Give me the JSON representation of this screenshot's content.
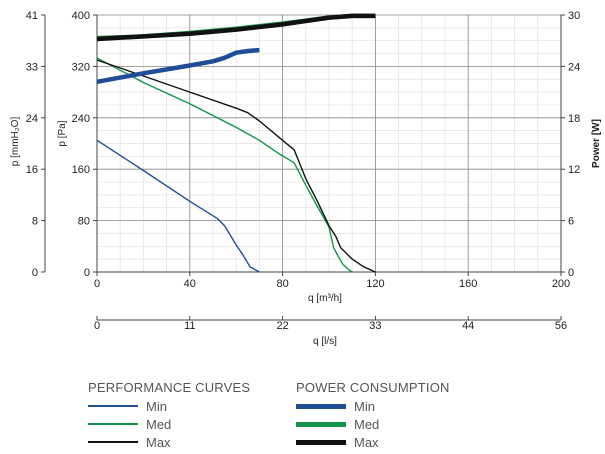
{
  "chart_data": {
    "type": "line",
    "x_primary": {
      "label": "q [m³/h]",
      "ticks": [
        "0",
        "40",
        "80",
        "120",
        "160",
        "200"
      ],
      "range": [
        0,
        200
      ]
    },
    "x_secondary": {
      "label": "q [l/s]",
      "ticks": [
        "0",
        "11",
        "22",
        "33",
        "44",
        "56"
      ]
    },
    "y_left_outer": {
      "label": "p [mmH₂O]",
      "ticks": [
        "0",
        "8",
        "16",
        "24",
        "33",
        "41"
      ]
    },
    "y_left_inner": {
      "label": "p [Pa]",
      "ticks": [
        "0",
        "80",
        "160",
        "240",
        "320",
        "400"
      ],
      "range": [
        0,
        400
      ]
    },
    "y_right": {
      "label": "Power [W]",
      "ticks": [
        "0",
        "6",
        "12",
        "18",
        "24",
        "30"
      ],
      "range": [
        0,
        30
      ]
    },
    "grid": true,
    "series": [
      {
        "name": "Min",
        "group": "performance",
        "axis": "pressure",
        "color": "#1f4e96",
        "x": [
          0,
          20,
          40,
          52,
          55,
          60,
          63,
          66,
          70
        ],
        "y": [
          205,
          158,
          110,
          83,
          72,
          42,
          26,
          8,
          0
        ]
      },
      {
        "name": "Med",
        "group": "performance",
        "axis": "pressure",
        "color": "#13944a",
        "x": [
          0,
          20,
          40,
          60,
          70,
          78,
          85,
          90,
          95,
          100,
          102,
          104,
          106,
          108,
          110
        ],
        "y": [
          333,
          295,
          262,
          225,
          205,
          185,
          170,
          135,
          102,
          70,
          38,
          24,
          12,
          5,
          0
        ]
      },
      {
        "name": "Max",
        "group": "performance",
        "axis": "pressure",
        "color": "#111111",
        "x": [
          0,
          20,
          40,
          60,
          65,
          70,
          80,
          85,
          90,
          95,
          100,
          103,
          105,
          110,
          115,
          120
        ],
        "y": [
          330,
          305,
          280,
          255,
          248,
          235,
          205,
          190,
          145,
          110,
          72,
          55,
          38,
          20,
          8,
          0
        ]
      },
      {
        "name": "Min",
        "group": "power",
        "axis": "power",
        "color": "#1f4e96",
        "x": [
          0,
          20,
          40,
          50,
          55,
          60,
          65,
          70
        ],
        "y": [
          22.2,
          23.2,
          24.1,
          24.6,
          25.0,
          25.6,
          25.8,
          25.9
        ]
      },
      {
        "name": "Med",
        "group": "power",
        "axis": "power",
        "color": "#13944a",
        "x": [
          0,
          20,
          40,
          60,
          80,
          100,
          110,
          120
        ],
        "y": [
          27.3,
          27.5,
          27.9,
          28.4,
          29.0,
          29.7,
          29.9,
          29.9
        ]
      },
      {
        "name": "Max",
        "group": "power",
        "axis": "power",
        "color": "#111111",
        "x": [
          0,
          20,
          40,
          60,
          80,
          100,
          110,
          120
        ],
        "y": [
          27.2,
          27.5,
          27.8,
          28.3,
          28.9,
          29.7,
          29.9,
          29.9
        ]
      }
    ]
  },
  "legend": {
    "performance_title": "PERFORMANCE CURVES",
    "power_title": "POWER CONSUMPTION",
    "performance_items": [
      {
        "label": "Min",
        "color": "#1f4e96"
      },
      {
        "label": "Med",
        "color": "#13944a"
      },
      {
        "label": "Max",
        "color": "#111111"
      }
    ],
    "power_items": [
      {
        "label": "Min",
        "color": "#1f4e96"
      },
      {
        "label": "Med",
        "color": "#13944a"
      },
      {
        "label": "Max",
        "color": "#111111"
      }
    ]
  }
}
